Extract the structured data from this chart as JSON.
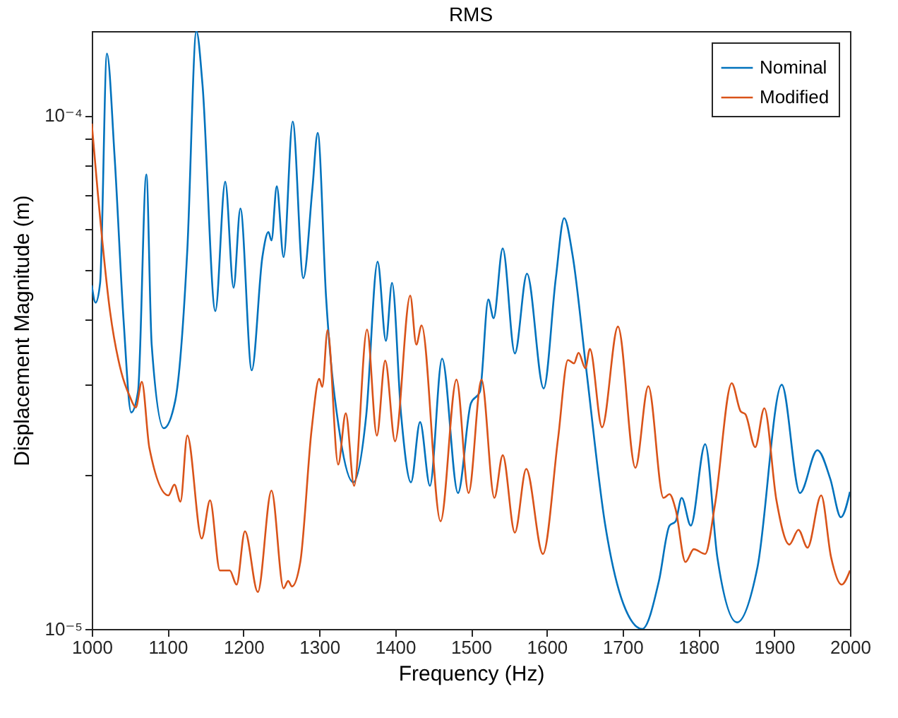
{
  "chart_data": {
    "type": "line",
    "title": "RMS",
    "xlabel": "Frequency (Hz)",
    "ylabel": "Displacement Magnitude (m)",
    "log": "y",
    "grid": false,
    "legend": "top right",
    "line_style": "solid",
    "xlim": [
      1000,
      2000
    ],
    "xticks": [
      1000,
      1100,
      1200,
      1300,
      1400,
      1500,
      1600,
      1700,
      1800,
      1900,
      2000
    ],
    "ylim": [
      1e-05,
      0.000146
    ],
    "yticks": [
      {
        "value": 1e-05,
        "label": "10⁻⁵"
      },
      {
        "value": 2e-05,
        "label": null
      },
      {
        "value": 3e-05,
        "label": null
      },
      {
        "value": 4e-05,
        "label": null
      },
      {
        "value": 5e-05,
        "label": null
      },
      {
        "value": 6e-05,
        "label": null
      },
      {
        "value": 7e-05,
        "label": null
      },
      {
        "value": 8e-05,
        "label": null
      },
      {
        "value": 9e-05,
        "label": null
      },
      {
        "value": 0.0001,
        "label": "10⁻⁴"
      }
    ],
    "series": [
      {
        "name": "Nominal",
        "color": "#0072bd",
        "x": [
          1000,
          1005,
          1011,
          1020,
          1030,
          1042,
          1052,
          1061,
          1072,
          1079,
          1095,
          1110,
          1126,
          1138,
          1146,
          1163,
          1176,
          1187,
          1196,
          1211,
          1225,
          1233,
          1237,
          1244,
          1253,
          1265,
          1279,
          1291,
          1298,
          1309,
          1328,
          1345,
          1362,
          1377,
          1388,
          1396,
          1408,
          1421,
          1433,
          1446,
          1462,
          1483,
          1500,
          1512,
          1523,
          1530,
          1542,
          1558,
          1574,
          1596,
          1612,
          1623,
          1634,
          1652,
          1677,
          1701,
          1726,
          1748,
          1762,
          1770,
          1778,
          1790,
          1809,
          1825,
          1851,
          1878,
          1910,
          1934,
          1957,
          1974,
          1988,
          2000
        ],
        "values": [
          4.67e-05,
          4.32e-05,
          4.72e-05,
          0.000132,
          8.36e-05,
          3.98e-05,
          2.64e-05,
          2.9e-05,
          7.68e-05,
          3.58e-05,
          2.46e-05,
          2.78e-05,
          5.47e-05,
          0.000146,
          0.000115,
          4.16e-05,
          7.43e-05,
          4.62e-05,
          6.59e-05,
          3.19e-05,
          5.3e-05,
          5.93e-05,
          5.71e-05,
          7.28e-05,
          5.3e-05,
          9.73e-05,
          4.82e-05,
          7.21e-05,
          9.25e-05,
          4.43e-05,
          2.35e-05,
          1.93e-05,
          2.61e-05,
          5.19e-05,
          3.64e-05,
          4.72e-05,
          2.61e-05,
          1.93e-05,
          2.53e-05,
          1.9e-05,
          3.36e-05,
          1.84e-05,
          2.75e-05,
          2.9e-05,
          4.38e-05,
          4.03e-05,
          5.51e-05,
          3.44e-05,
          4.92e-05,
          2.94e-05,
          4.82e-05,
          6.31e-05,
          5.36e-05,
          3.22e-05,
          1.6e-05,
          1.12e-05,
          1e-05,
          1.24e-05,
          1.59e-05,
          1.62e-05,
          1.8e-05,
          1.59e-05,
          2.29e-05,
          1.38e-05,
          1.03e-05,
          1.32e-05,
          2.99e-05,
          1.84e-05,
          2.23e-05,
          1.96e-05,
          1.65e-05,
          1.85e-05
        ]
      },
      {
        "name": "Modified",
        "color": "#d95319",
        "x": [
          1000,
          1008,
          1024,
          1039,
          1050,
          1058,
          1066,
          1076,
          1101,
          1109,
          1117,
          1126,
          1145,
          1156,
          1169,
          1182,
          1191,
          1202,
          1219,
          1237,
          1253,
          1259,
          1264,
          1275,
          1290,
          1300,
          1304,
          1311,
          1325,
          1335,
          1346,
          1363,
          1376,
          1387,
          1400,
          1420,
          1428,
          1435,
          1460,
          1481,
          1497,
          1514,
          1531,
          1542,
          1558,
          1573,
          1595,
          1615,
          1628,
          1636,
          1642,
          1651,
          1657,
          1673,
          1694,
          1717,
          1734,
          1754,
          1762,
          1770,
          1783,
          1794,
          1809,
          1822,
          1844,
          1856,
          1862,
          1875,
          1887,
          1903,
          1920,
          1932,
          1944,
          1962,
          1975,
          1989,
          2000
        ],
        "values": [
          9.64e-05,
          7.05e-05,
          4.16e-05,
          3.16e-05,
          2.84e-05,
          2.7e-05,
          3.03e-05,
          2.25e-05,
          1.82e-05,
          1.91e-05,
          1.77e-05,
          2.38e-05,
          1.5e-05,
          1.78e-05,
          1.3e-05,
          1.3e-05,
          1.22e-05,
          1.55e-05,
          1.18e-05,
          1.86e-05,
          1.2e-05,
          1.24e-05,
          1.21e-05,
          1.35e-05,
          2.45e-05,
          3.07e-05,
          2.96e-05,
          3.82e-05,
          2.09e-05,
          2.63e-05,
          1.9e-05,
          3.83e-05,
          2.38e-05,
          3.33e-05,
          2.32e-05,
          4.46e-05,
          3.58e-05,
          3.9e-05,
          1.62e-05,
          3.06e-05,
          1.84e-05,
          3.06e-05,
          1.8e-05,
          2.18e-05,
          1.54e-05,
          2.05e-05,
          1.4e-05,
          2.35e-05,
          3.34e-05,
          3.29e-05,
          3.45e-05,
          3.22e-05,
          3.51e-05,
          2.47e-05,
          3.88e-05,
          2.06e-05,
          2.97e-05,
          1.8e-05,
          1.83e-05,
          1.71e-05,
          1.35e-05,
          1.43e-05,
          1.4e-05,
          1.75e-05,
          3.01e-05,
          2.65e-05,
          2.62e-05,
          2.26e-05,
          2.69e-05,
          1.78e-05,
          1.46e-05,
          1.56e-05,
          1.44e-05,
          1.82e-05,
          1.38e-05,
          1.22e-05,
          1.3e-05
        ]
      }
    ]
  }
}
